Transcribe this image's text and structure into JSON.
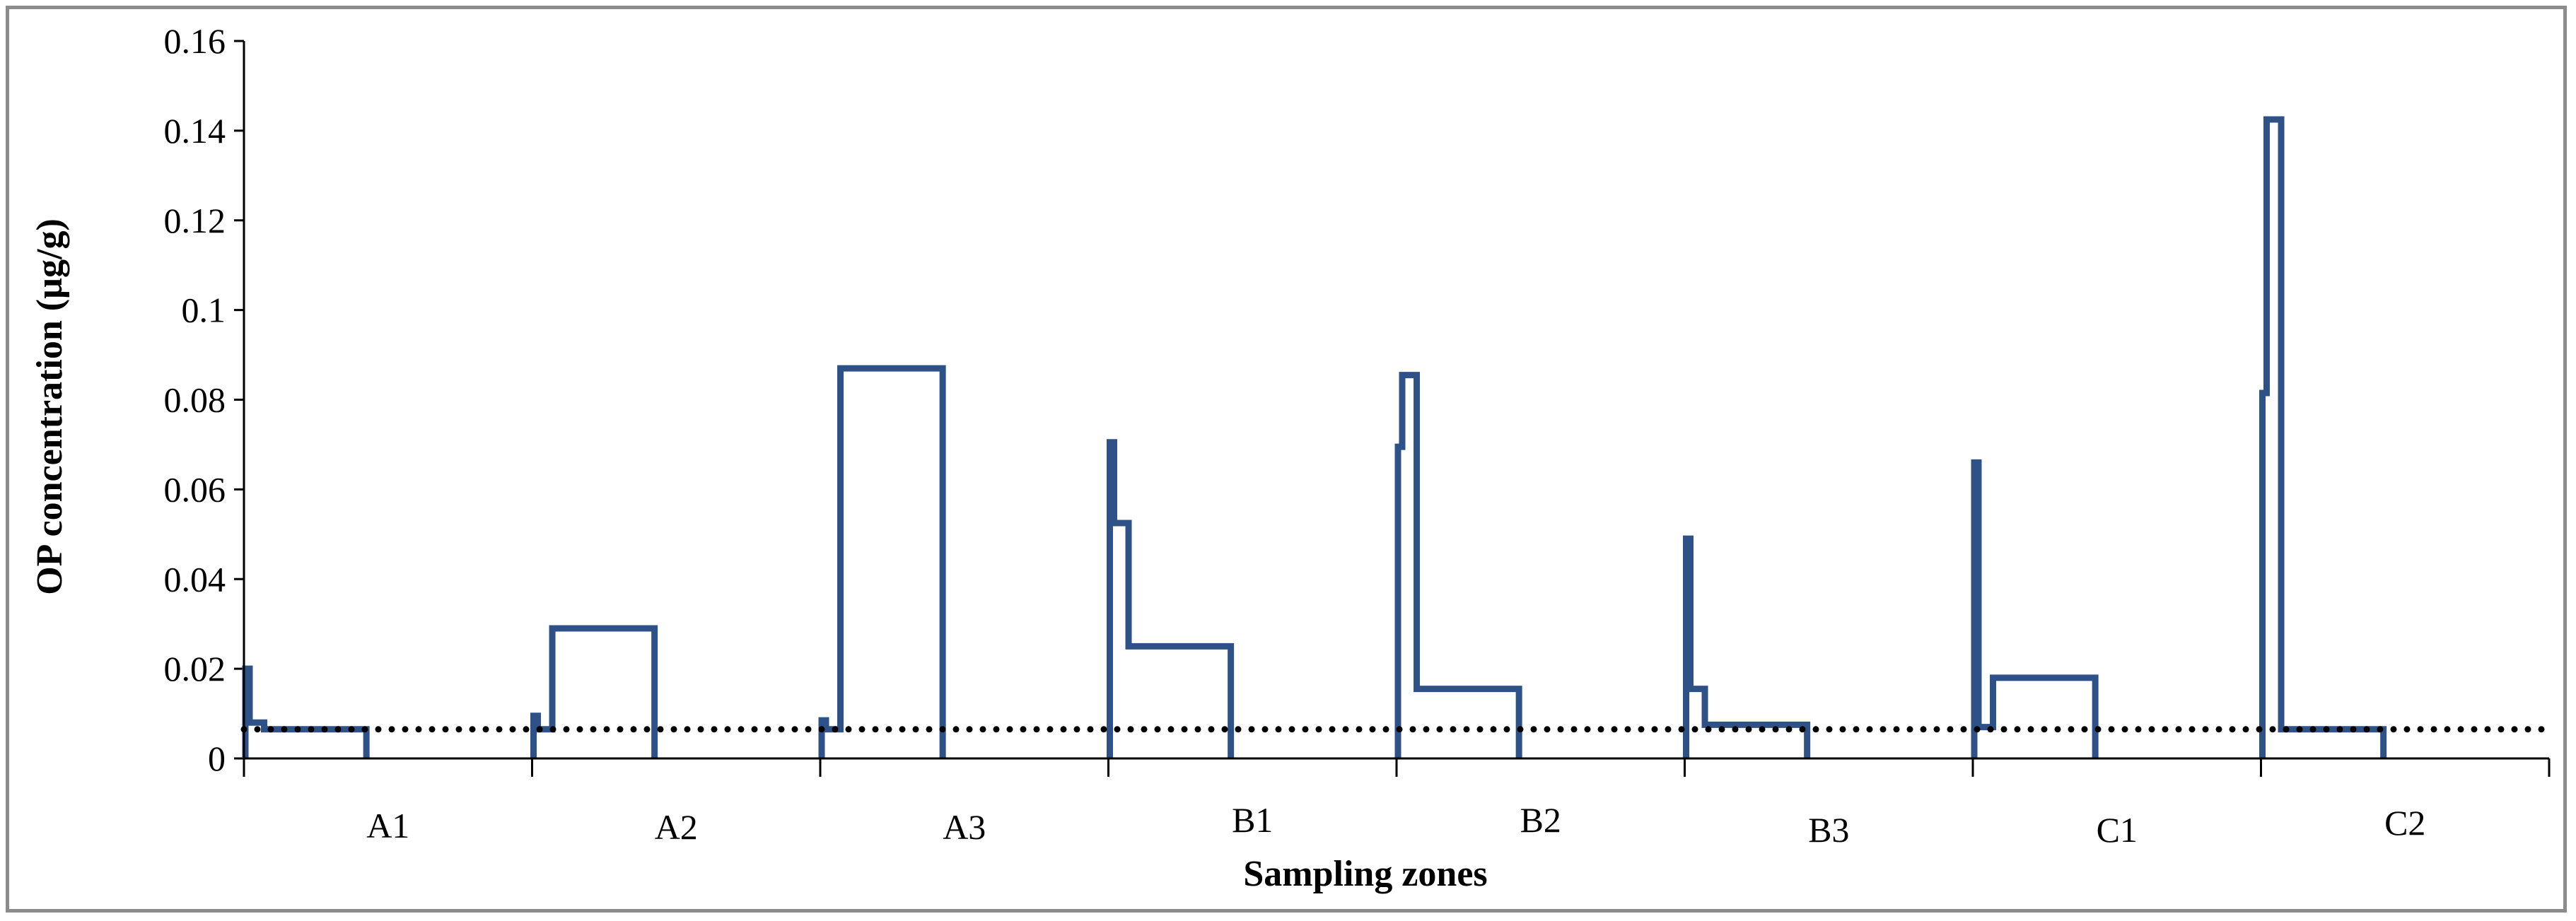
{
  "chart_data": {
    "type": "line",
    "subtype": "step",
    "title": "",
    "xlabel": "Sampling zones",
    "ylabel": "OP concentration (µg/g)",
    "ylim": [
      0,
      0.16
    ],
    "yticks": [
      0,
      0.02,
      0.04,
      0.06,
      0.08,
      0.1,
      0.12,
      0.14,
      0.16
    ],
    "ytick_labels": [
      "0",
      "0.02",
      "0.04",
      "0.06",
      "0.08",
      "0.1",
      "0.12",
      "0.14",
      "0.16"
    ],
    "grid": false,
    "legend": "none",
    "categories": [
      "A1",
      "A2",
      "A3",
      "B1",
      "B2",
      "B3",
      "C1",
      "C2"
    ],
    "series": [
      {
        "color": "#2e5288",
        "style": "solid",
        "zones": [
          {
            "zone": "A1",
            "levels": [
              0.02,
              0.008,
              0.0065
            ]
          },
          {
            "zone": "A2",
            "levels": [
              0.0095,
              0.0065,
              0.029
            ]
          },
          {
            "zone": "A3",
            "levels": [
              0.0085,
              0.0065,
              0.087
            ]
          },
          {
            "zone": "B1",
            "levels": [
              0.0705,
              0.0525,
              0.025
            ]
          },
          {
            "zone": "B2",
            "levels": [
              0.0695,
              0.0855,
              0.0155
            ]
          },
          {
            "zone": "B3",
            "levels": [
              0.049,
              0.0155,
              0.0075
            ]
          },
          {
            "zone": "C1",
            "levels": [
              0.066,
              0.007,
              0.018
            ]
          },
          {
            "zone": "C2",
            "levels": [
              0.0815,
              0.1425,
              0.0065
            ]
          }
        ]
      },
      {
        "color": "#000000",
        "style": "dotted",
        "constant_value": 0.0065
      }
    ]
  }
}
